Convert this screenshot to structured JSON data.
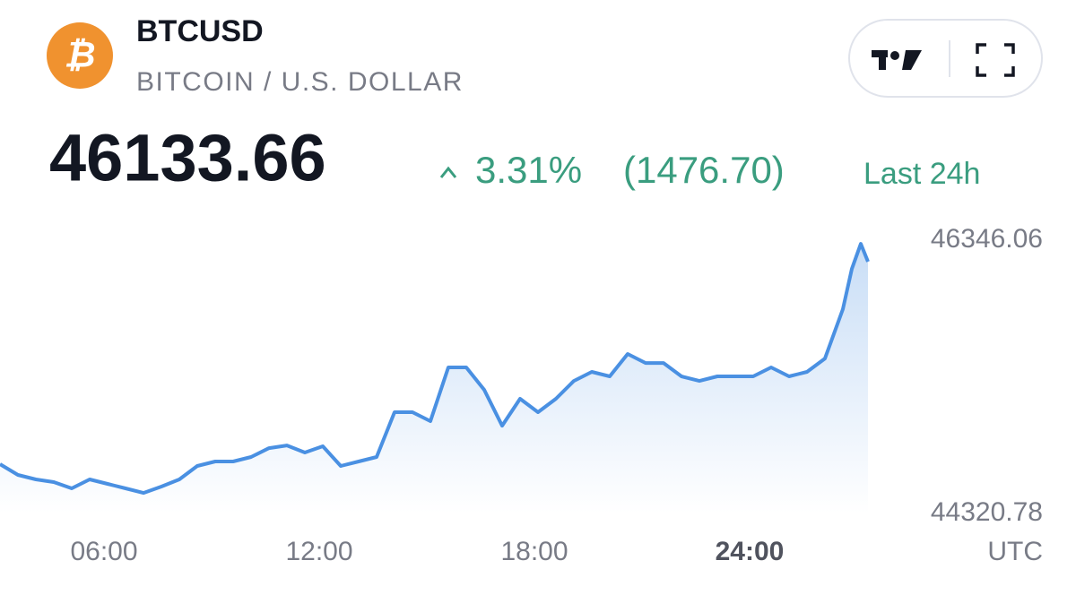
{
  "header": {
    "symbol": "BTCUSD",
    "name": "BITCOIN / U.S. DOLLAR",
    "price": "46133.66",
    "change_percent": "3.31%",
    "change_value": "(1476.70)",
    "period": "Last 24h"
  },
  "chart_data": {
    "type": "line",
    "x": [
      3.1,
      3.6,
      4.1,
      4.6,
      5.1,
      5.6,
      6.1,
      6.6,
      7.1,
      7.6,
      8.1,
      8.6,
      9.1,
      9.6,
      10.1,
      10.6,
      11.1,
      11.6,
      12.1,
      12.6,
      13.1,
      13.6,
      14.1,
      14.6,
      15.1,
      15.6,
      16.1,
      16.6,
      17.1,
      17.6,
      18.1,
      18.6,
      19.1,
      19.6,
      20.1,
      20.6,
      21.1,
      21.6,
      22.1,
      22.6,
      23.1,
      23.6,
      24.1,
      24.6,
      25.1,
      25.6,
      26.1,
      26.6,
      26.85,
      27.1,
      27.3
    ],
    "series": [
      {
        "name": "BTCUSD",
        "color": "#4a90e2",
        "values": [
          44686,
          44606,
          44573,
          44553,
          44507,
          44573,
          44540,
          44507,
          44473,
          44520,
          44573,
          44673,
          44706,
          44706,
          44739,
          44805,
          44825,
          44772,
          44819,
          44673,
          44706,
          44739,
          45071,
          45071,
          45005,
          45403,
          45403,
          45237,
          44971,
          45171,
          45071,
          45171,
          45303,
          45370,
          45337,
          45503,
          45436,
          45436,
          45337,
          45303,
          45337,
          45337,
          45337,
          45403,
          45337,
          45370,
          45469,
          45835,
          46133,
          46319,
          46187
        ]
      }
    ],
    "xlim": [
      3.1,
      27.3
    ],
    "xticks": [
      {
        "value": 6,
        "label": "06:00"
      },
      {
        "value": 12,
        "label": "12:00"
      },
      {
        "value": 18,
        "label": "18:00"
      },
      {
        "value": 24,
        "label": "24:00"
      }
    ],
    "ylim": [
      44320.78,
      46346.06
    ],
    "yticks": [
      46346.06,
      44320.78
    ],
    "x_unit_label": "UTC"
  }
}
